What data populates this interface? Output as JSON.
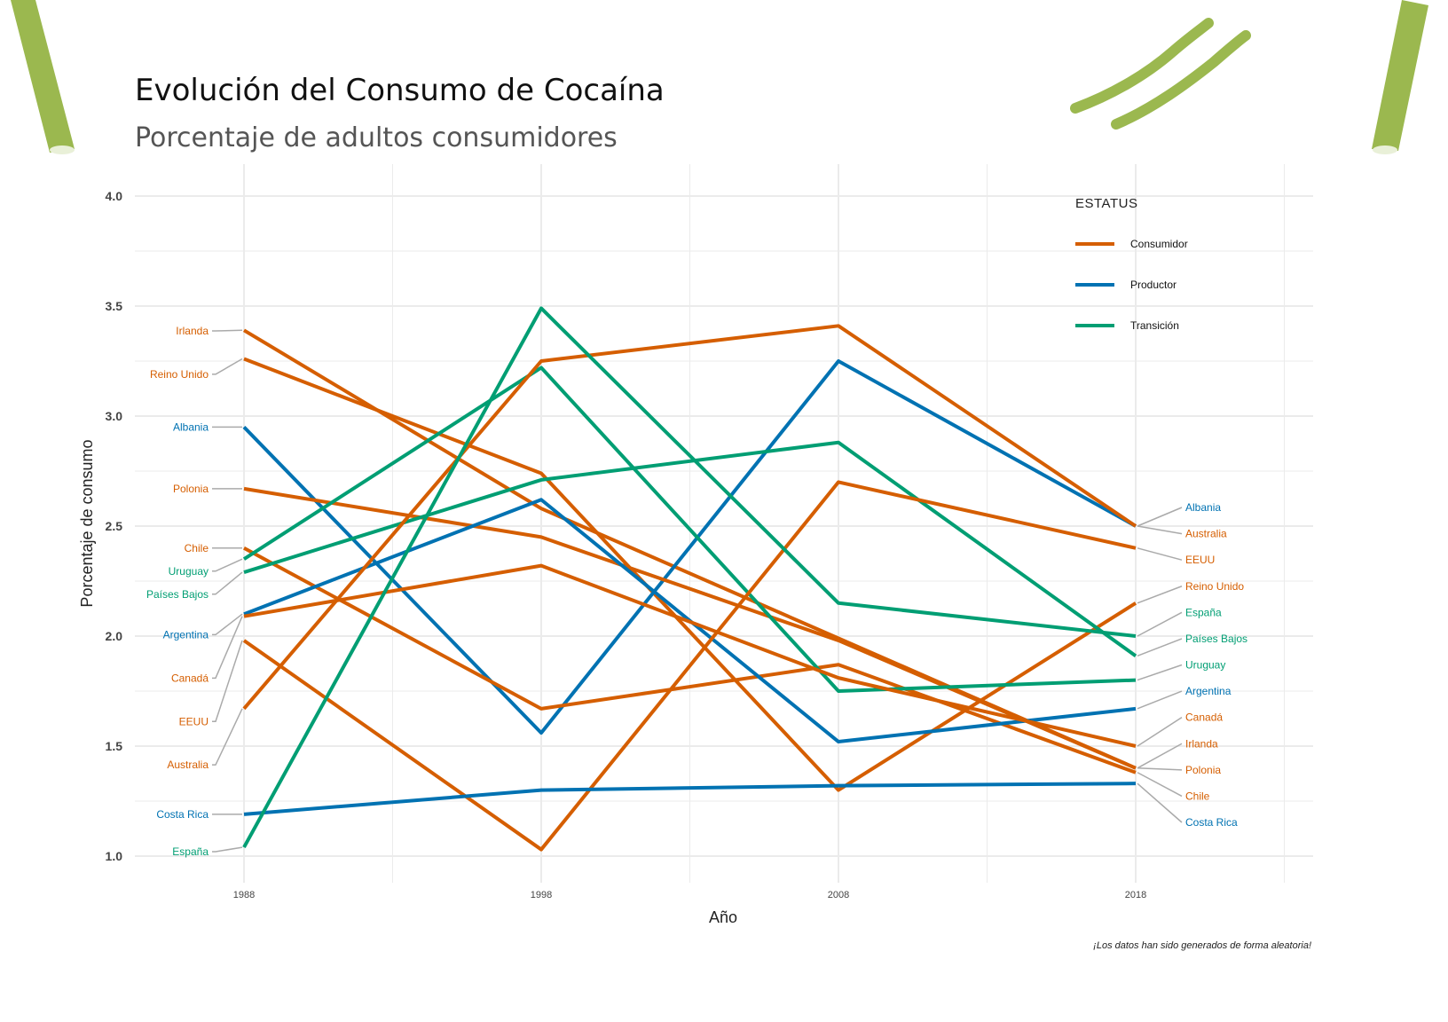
{
  "title": "Evolución del Consumo de Cocaína",
  "subtitle": "Porcentaje de adultos consumidores",
  "caption": "¡Los datos han sido generados de forma aleatoria!",
  "colors": {
    "Consumidor": "#D55E00",
    "Productor": "#0072B2",
    "Transición": "#009E73",
    "leader": "#aaaaaa",
    "grid": "#ebebeb",
    "decor": "#9bb84f"
  },
  "chart_data": {
    "type": "line",
    "xlabel": "Año",
    "ylabel": "Porcentaje de consumo",
    "x": [
      1988,
      1998,
      2008,
      2018
    ],
    "x_ticks": [
      "1988",
      "1998",
      "2008",
      "2018"
    ],
    "ylim": [
      1.0,
      4.0
    ],
    "y_ticks": [
      "1.0",
      "1.5",
      "2.0",
      "2.5",
      "3.0",
      "3.5",
      "4.0"
    ],
    "grid": true,
    "legend": {
      "title": "ESTATUS",
      "position": "top-right",
      "entries": [
        "Consumidor",
        "Productor",
        "Transición"
      ]
    },
    "series": [
      {
        "name": "Irlanda",
        "group": "Consumidor",
        "values": [
          3.39,
          2.58,
          1.99,
          1.4
        ]
      },
      {
        "name": "Reino Unido",
        "group": "Consumidor",
        "values": [
          3.26,
          2.74,
          1.3,
          2.15
        ]
      },
      {
        "name": "Albania",
        "group": "Productor",
        "values": [
          2.95,
          1.56,
          3.25,
          2.5
        ]
      },
      {
        "name": "Polonia",
        "group": "Consumidor",
        "values": [
          2.67,
          2.45,
          1.98,
          1.4
        ]
      },
      {
        "name": "Chile",
        "group": "Consumidor",
        "values": [
          2.4,
          1.67,
          1.87,
          1.38
        ]
      },
      {
        "name": "Uruguay",
        "group": "Transición",
        "values": [
          2.35,
          3.22,
          1.75,
          1.8
        ]
      },
      {
        "name": "Países Bajos",
        "group": "Transición",
        "values": [
          2.29,
          2.71,
          2.88,
          1.91
        ]
      },
      {
        "name": "Argentina",
        "group": "Productor",
        "values": [
          2.1,
          2.62,
          1.52,
          1.67
        ]
      },
      {
        "name": "Canadá",
        "group": "Consumidor",
        "values": [
          2.09,
          2.32,
          1.81,
          1.5
        ]
      },
      {
        "name": "EEUU",
        "group": "Consumidor",
        "values": [
          1.98,
          1.03,
          2.7,
          2.4
        ]
      },
      {
        "name": "Australia",
        "group": "Consumidor",
        "values": [
          1.67,
          3.25,
          3.41,
          2.5
        ]
      },
      {
        "name": "Costa Rica",
        "group": "Productor",
        "values": [
          1.19,
          1.3,
          1.32,
          1.33
        ]
      },
      {
        "name": "España",
        "group": "Transición",
        "values": [
          1.04,
          3.49,
          2.15,
          2.0
        ]
      }
    ]
  }
}
